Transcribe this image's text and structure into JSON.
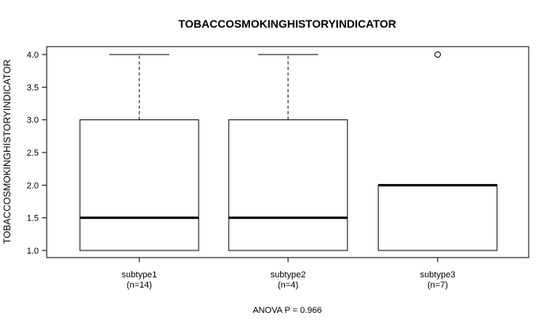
{
  "chart_data": {
    "type": "boxplot",
    "title": "TOBACCOSMOKINGHISTORYINDICATOR",
    "ylabel": "TOBACCOSMOKINGHISTORYINDICATOR",
    "xlabel": "ANOVA P = 0.966",
    "ylim": [
      1.0,
      4.0
    ],
    "yticks": [
      "1.0",
      "1.5",
      "2.0",
      "2.5",
      "3.0",
      "3.5",
      "4.0"
    ],
    "groups": [
      {
        "name": "subtype1",
        "n_label": "(n=14)",
        "min": 1.0,
        "q1": 1.0,
        "median": 1.5,
        "q3": 3.0,
        "max": 4.0,
        "outliers": []
      },
      {
        "name": "subtype2",
        "n_label": "(n=4)",
        "min": 1.0,
        "q1": 1.0,
        "median": 1.5,
        "q3": 3.0,
        "max": 4.0,
        "outliers": []
      },
      {
        "name": "subtype3",
        "n_label": "(n=7)",
        "min": 1.0,
        "q1": 1.0,
        "median": 2.0,
        "q3": 2.0,
        "max": 2.0,
        "outliers": [
          4.0
        ]
      }
    ]
  }
}
